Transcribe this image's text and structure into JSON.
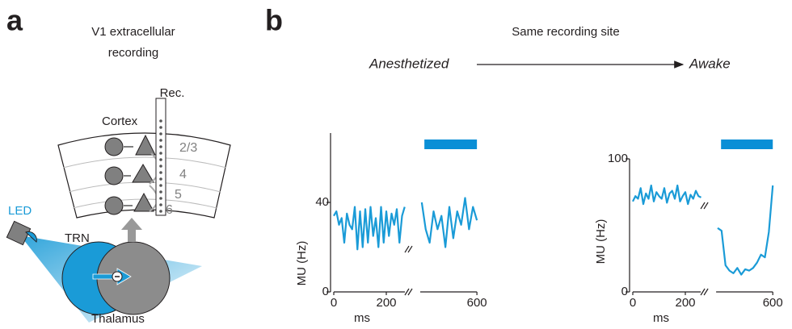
{
  "panel_a": {
    "letter": "a",
    "title_lines": [
      "V1 extracellular",
      "recording"
    ],
    "electrode": "Rec.",
    "cortex": "Cortex",
    "layers": [
      "2/3",
      "4",
      "5",
      "6"
    ],
    "led": "LED",
    "trn": "TRN",
    "thalamus": "Thalamus"
  },
  "panel_b": {
    "letter": "b",
    "title": "Same recording site",
    "from": "Anesthetized",
    "to": "Awake"
  },
  "chart_data": [
    {
      "type": "line",
      "ylabel": "MU (Hz)",
      "xlabel": "ms",
      "ylim": [
        0,
        71
      ],
      "yticks": [
        0,
        40
      ],
      "xlim": [
        0,
        600
      ],
      "xticks": [
        0,
        200,
        600
      ],
      "x_break": [
        280,
        375
      ],
      "stimulus": [
        400,
        600
      ],
      "stimulus_color": "#0a8fd6",
      "series": [
        {
          "color": "#1a9bd7",
          "x": [
            0,
            10,
            20,
            30,
            40,
            50,
            60,
            70,
            80,
            90,
            100,
            110,
            120,
            130,
            140,
            150,
            160,
            170,
            180,
            190,
            200,
            210,
            220,
            230,
            240,
            250,
            260,
            270,
            320,
            390,
            405,
            420,
            435,
            450,
            465,
            480,
            495,
            510,
            525,
            540,
            555,
            570,
            585,
            600
          ],
          "values": [
            34,
            36,
            30,
            33,
            22,
            35,
            30,
            28,
            38,
            19,
            36,
            20,
            37,
            22,
            38,
            25,
            33,
            20,
            38,
            22,
            36,
            25,
            35,
            30,
            37,
            22,
            34,
            38,
            null,
            40,
            28,
            22,
            36,
            28,
            34,
            20,
            38,
            24,
            36,
            30,
            42,
            28,
            38,
            32
          ]
        }
      ]
    },
    {
      "type": "line",
      "ylabel": "MU (Hz)",
      "xlabel": "ms",
      "ylim": [
        0,
        100
      ],
      "yticks": [
        0,
        100
      ],
      "xlim": [
        0,
        600
      ],
      "xticks": [
        0,
        200,
        600
      ],
      "x_break": [
        268,
        375
      ],
      "stimulus": [
        403,
        600
      ],
      "stimulus_color": "#0a8fd6",
      "series": [
        {
          "color": "#1a9bd7",
          "x": [
            0,
            10,
            20,
            30,
            40,
            50,
            60,
            70,
            80,
            90,
            100,
            110,
            120,
            130,
            140,
            150,
            160,
            170,
            180,
            190,
            200,
            210,
            220,
            230,
            240,
            250,
            260,
            320,
            390,
            405,
            420,
            435,
            450,
            465,
            480,
            495,
            510,
            525,
            540,
            555,
            570,
            585,
            600
          ],
          "values": [
            68,
            72,
            70,
            78,
            66,
            74,
            70,
            80,
            68,
            75,
            72,
            70,
            78,
            67,
            74,
            76,
            70,
            80,
            68,
            72,
            75,
            66,
            73,
            70,
            76,
            72,
            71,
            null,
            48,
            46,
            20,
            16,
            14,
            18,
            13,
            17,
            16,
            18,
            22,
            28,
            26,
            45,
            80
          ]
        }
      ]
    }
  ]
}
